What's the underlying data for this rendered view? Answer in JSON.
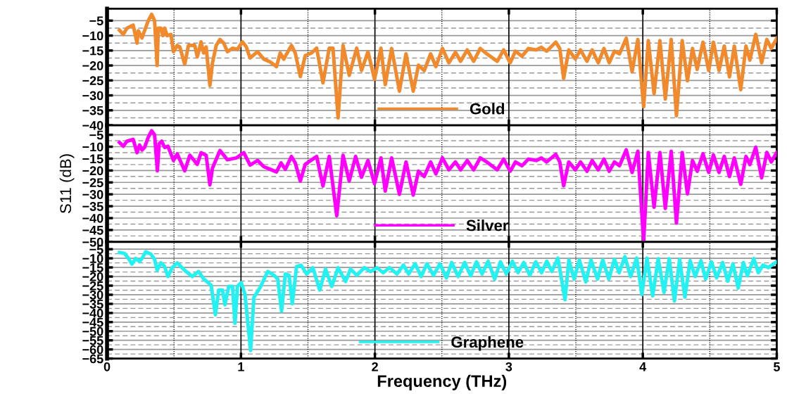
{
  "chart_data": [
    {
      "type": "line",
      "xlim": [
        0,
        5
      ],
      "xticks": [
        0,
        1,
        2,
        3,
        4,
        5
      ],
      "ylim": [
        -40,
        -1
      ],
      "yticks": [
        -40,
        -35,
        -30,
        -25,
        -20,
        -15,
        -10,
        -5
      ],
      "grid": true,
      "legend": "bottom",
      "tick_labels": "y",
      "line_style": "solid",
      "marker": "none",
      "series": [
        {
          "name": "Gold",
          "color": "#f08a2c",
          "x": [
            0.093,
            0.121,
            0.149,
            0.195,
            0.224,
            0.233,
            0.261,
            0.28,
            0.308,
            0.333,
            0.355,
            0.374,
            0.383,
            0.402,
            0.417,
            0.43,
            0.449,
            0.477,
            0.496,
            0.524,
            0.543,
            0.58,
            0.608,
            0.655,
            0.674,
            0.702,
            0.721,
            0.74,
            0.768,
            0.787,
            0.815,
            0.843,
            0.871,
            0.899,
            0.937,
            0.974,
            1.011,
            1.04,
            1.068,
            1.124,
            1.171,
            1.218,
            1.265,
            1.293,
            1.32,
            1.34,
            1.377,
            1.405,
            1.443,
            1.48,
            1.527,
            1.565,
            1.612,
            1.659,
            1.687,
            1.725,
            1.762,
            1.808,
            1.864,
            1.9,
            1.948,
            1.997,
            2.045,
            2.077,
            2.125,
            2.183,
            2.232,
            2.286,
            2.325,
            2.368,
            2.416,
            2.455,
            2.504,
            2.552,
            2.601,
            2.64,
            2.689,
            2.737,
            2.786,
            2.835,
            2.913,
            2.961,
            3.01,
            3.049,
            3.098,
            3.146,
            3.204,
            3.243,
            3.282,
            3.35,
            3.38,
            3.409,
            3.447,
            3.496,
            3.535,
            3.583,
            3.622,
            3.667,
            3.71,
            3.749,
            3.788,
            3.826,
            3.876,
            3.92,
            3.963,
            4.006,
            4.041,
            4.084,
            4.128,
            4.168,
            4.212,
            4.251,
            4.294,
            4.333,
            4.371,
            4.406,
            4.449,
            4.492,
            4.527,
            4.569,
            4.608,
            4.647,
            4.683,
            4.731,
            4.77,
            4.799,
            4.843,
            4.887,
            4.926,
            4.959,
            5.0
          ],
          "values": [
            -8.2,
            -9.6,
            -7.5,
            -6.5,
            -12.5,
            -8.4,
            -10.8,
            -8.4,
            -5.0,
            -2.9,
            -5.0,
            -20.0,
            -7.5,
            -7.5,
            -10.0,
            -7.5,
            -10.0,
            -9.6,
            -15.4,
            -13.3,
            -13.8,
            -19.6,
            -13.3,
            -13.3,
            -17.1,
            -12.1,
            -15.8,
            -13.8,
            -26.7,
            -19.2,
            -13.3,
            -11.3,
            -12.5,
            -15.4,
            -14.2,
            -14.6,
            -12.1,
            -13.8,
            -17.5,
            -15.4,
            -17.9,
            -18.8,
            -20.4,
            -15.8,
            -17.9,
            -16.2,
            -13.3,
            -15.8,
            -23.7,
            -16.7,
            -15.8,
            -14.2,
            -25.8,
            -14.2,
            -14.2,
            -37.5,
            -13.3,
            -23.3,
            -14.2,
            -21.7,
            -15.4,
            -24.6,
            -14.2,
            -26.4,
            -14.3,
            -28.6,
            -16.1,
            -28.6,
            -19.9,
            -21.7,
            -16.1,
            -20.4,
            -14.3,
            -19.1,
            -15.6,
            -18.6,
            -14.8,
            -18.6,
            -14.3,
            -16.1,
            -18.6,
            -14.8,
            -19.1,
            -15.2,
            -16.9,
            -14.3,
            -14.8,
            -13.9,
            -15.2,
            -12.2,
            -14.3,
            -24.3,
            -14.8,
            -17.8,
            -14.8,
            -18.6,
            -14.8,
            -19.1,
            -14.3,
            -19.1,
            -15.2,
            -16.1,
            -10.9,
            -22.1,
            -11.3,
            -33.8,
            -11.7,
            -29.4,
            -11.7,
            -31.2,
            -11.3,
            -36.8,
            -11.7,
            -25.1,
            -14.3,
            -21.3,
            -12.2,
            -21.7,
            -12.2,
            -21.7,
            -13.5,
            -23.8,
            -13.5,
            -28.1,
            -13.5,
            -18.2,
            -9.6,
            -19.1,
            -11.3,
            -14.3,
            -10.9
          ]
        }
      ]
    },
    {
      "type": "line",
      "xlim": [
        0,
        5
      ],
      "xticks": [
        0,
        1,
        2,
        3,
        4,
        5
      ],
      "ylim": [
        -50,
        -1
      ],
      "yticks": [
        -50,
        -45,
        -40,
        -35,
        -30,
        -25,
        -20,
        -15,
        -10,
        -5
      ],
      "grid": true,
      "legend": "bottom",
      "tick_labels": "y",
      "line_style": "solid",
      "marker": "none",
      "ylabel": "S11 (dB)",
      "series": [
        {
          "name": "Silver",
          "color": "#ff00ff",
          "x": [
            0.093,
            0.121,
            0.149,
            0.195,
            0.224,
            0.243,
            0.261,
            0.28,
            0.308,
            0.333,
            0.355,
            0.376,
            0.389,
            0.408,
            0.43,
            0.455,
            0.496,
            0.524,
            0.58,
            0.618,
            0.674,
            0.702,
            0.74,
            0.768,
            0.787,
            0.843,
            0.899,
            0.965,
            1.021,
            1.068,
            1.124,
            1.171,
            1.218,
            1.265,
            1.299,
            1.331,
            1.377,
            1.405,
            1.443,
            1.48,
            1.565,
            1.612,
            1.659,
            1.715,
            1.762,
            1.808,
            1.856,
            1.9,
            1.948,
            1.997,
            2.045,
            2.077,
            2.125,
            2.183,
            2.232,
            2.286,
            2.325,
            2.368,
            2.416,
            2.455,
            2.504,
            2.552,
            2.601,
            2.64,
            2.689,
            2.737,
            2.786,
            2.835,
            2.913,
            2.961,
            3.01,
            3.049,
            3.098,
            3.146,
            3.204,
            3.243,
            3.282,
            3.35,
            3.38,
            3.409,
            3.447,
            3.496,
            3.535,
            3.583,
            3.622,
            3.667,
            3.71,
            3.749,
            3.788,
            3.826,
            3.876,
            3.92,
            3.963,
            4.006,
            4.041,
            4.084,
            4.128,
            4.168,
            4.212,
            4.251,
            4.294,
            4.333,
            4.371,
            4.406,
            4.449,
            4.492,
            4.527,
            4.569,
            4.608,
            4.647,
            4.683,
            4.731,
            4.77,
            4.799,
            4.843,
            4.887,
            4.926,
            4.959,
            5.0
          ],
          "values": [
            -8.2,
            -9.8,
            -7.7,
            -6.9,
            -12.5,
            -9.3,
            -11.4,
            -10.3,
            -6.0,
            -3.3,
            -5.0,
            -20.1,
            -8.7,
            -7.7,
            -10.3,
            -9.8,
            -15.8,
            -13.0,
            -20.1,
            -13.6,
            -17.4,
            -12.5,
            -13.6,
            -26.0,
            -19.0,
            -11.6,
            -15.5,
            -14.7,
            -12.5,
            -17.7,
            -15.8,
            -18.4,
            -19.5,
            -20.6,
            -16.8,
            -19.5,
            -14.1,
            -16.8,
            -24.4,
            -17.4,
            -14.1,
            -26.5,
            -14.1,
            -39.0,
            -13.6,
            -24.4,
            -14.1,
            -22.8,
            -15.8,
            -25.5,
            -14.7,
            -28.6,
            -14.7,
            -30.0,
            -16.4,
            -30.3,
            -20.3,
            -22.5,
            -16.4,
            -21.4,
            -14.7,
            -19.7,
            -16.4,
            -19.7,
            -15.8,
            -19.7,
            -14.7,
            -16.4,
            -19.7,
            -15.2,
            -20.3,
            -16.4,
            -18.0,
            -15.2,
            -15.8,
            -14.7,
            -16.4,
            -13.2,
            -16.4,
            -26.4,
            -16.4,
            -19.7,
            -16.4,
            -20.3,
            -15.8,
            -19.7,
            -15.2,
            -20.3,
            -16.4,
            -18.0,
            -11.3,
            -20.8,
            -11.9,
            -49.9,
            -12.4,
            -35.4,
            -12.4,
            -35.9,
            -11.9,
            -42.1,
            -12.4,
            -29.8,
            -15.8,
            -20.3,
            -13.0,
            -20.8,
            -13.5,
            -20.8,
            -14.1,
            -22.5,
            -14.7,
            -25.8,
            -14.1,
            -17.5,
            -10.2,
            -23.1,
            -12.4,
            -16.4,
            -12.4
          ]
        }
      ]
    },
    {
      "type": "line",
      "xlim": [
        0,
        5
      ],
      "xticks": [
        0,
        1,
        2,
        3,
        4,
        5
      ],
      "ylim": [
        -65,
        -1
      ],
      "yticks": [
        -65,
        -60,
        -55,
        -50,
        -45,
        -40,
        -35,
        -30,
        -25,
        -20,
        -15,
        -10,
        -5
      ],
      "grid": true,
      "legend": "bottom",
      "line_style": "solid",
      "marker": "none",
      "xlabel": "Frequency (THz)",
      "series": [
        {
          "name": "Graphene",
          "color": "#22f2f2",
          "x": [
            0.093,
            0.13,
            0.158,
            0.186,
            0.214,
            0.243,
            0.261,
            0.289,
            0.327,
            0.355,
            0.374,
            0.402,
            0.43,
            0.454,
            0.486,
            0.524,
            0.58,
            0.637,
            0.684,
            0.721,
            0.777,
            0.809,
            0.834,
            0.862,
            0.88,
            0.909,
            0.937,
            0.955,
            0.974,
            1.002,
            1.03,
            1.072,
            1.096,
            1.143,
            1.2,
            1.246,
            1.274,
            1.303,
            1.331,
            1.359,
            1.383,
            1.415,
            1.449,
            1.49,
            1.537,
            1.588,
            1.631,
            1.678,
            1.725,
            1.781,
            1.818,
            1.865,
            1.922,
            1.968,
            2.015,
            2.062,
            2.109,
            2.164,
            2.213,
            2.252,
            2.3,
            2.345,
            2.388,
            2.437,
            2.485,
            2.534,
            2.573,
            2.621,
            2.67,
            2.715,
            2.758,
            2.8,
            2.845,
            2.894,
            2.937,
            2.981,
            3.026,
            3.069,
            3.111,
            3.156,
            3.201,
            3.244,
            3.283,
            3.321,
            3.366,
            3.419,
            3.448,
            3.487,
            3.526,
            3.574,
            3.613,
            3.662,
            3.701,
            3.746,
            3.788,
            3.823,
            3.866,
            3.909,
            3.954,
            3.993,
            4.031,
            4.074,
            4.115,
            4.158,
            4.197,
            4.236,
            4.275,
            4.314,
            4.353,
            4.391,
            4.434,
            4.469,
            4.512,
            4.551,
            4.596,
            4.634,
            4.673,
            4.712,
            4.751,
            4.78,
            4.829,
            4.862,
            4.897,
            4.936,
            5.0
          ],
          "values": [
            -6.8,
            -7.3,
            -9.8,
            -13.2,
            -10.1,
            -11.8,
            -10.1,
            -6.4,
            -7.7,
            -10.5,
            -16.6,
            -12.5,
            -14.5,
            -20.0,
            -15.2,
            -12.5,
            -16.6,
            -20.0,
            -17.2,
            -21.3,
            -24.7,
            -41.0,
            -27.4,
            -27.4,
            -35.5,
            -25.4,
            -25.4,
            -45.7,
            -25.4,
            -23.3,
            -29.8,
            -60.6,
            -31.5,
            -26.0,
            -17.2,
            -19.3,
            -21.3,
            -39.0,
            -18.6,
            -19.3,
            -34.9,
            -14.5,
            -13.8,
            -18.6,
            -15.2,
            -27.4,
            -15.9,
            -25.4,
            -15.2,
            -22.7,
            -15.9,
            -19.3,
            -15.1,
            -17.2,
            -15.2,
            -17.9,
            -15.1,
            -18.6,
            -13.7,
            -18.6,
            -13.0,
            -20.0,
            -13.0,
            -19.3,
            -13.0,
            -20.7,
            -12.3,
            -20.0,
            -12.3,
            -19.6,
            -11.9,
            -18.6,
            -11.6,
            -21.4,
            -11.9,
            -18.6,
            -11.6,
            -17.9,
            -12.3,
            -19.3,
            -11.9,
            -17.9,
            -11.6,
            -17.2,
            -9.9,
            -32.7,
            -10.9,
            -21.4,
            -10.9,
            -22.9,
            -10.9,
            -21.4,
            -10.9,
            -21.4,
            -10.5,
            -17.9,
            -9.1,
            -20.0,
            -9.9,
            -29.9,
            -9.9,
            -30.6,
            -10.2,
            -28.7,
            -10.2,
            -33.4,
            -10.5,
            -31.3,
            -11.3,
            -20.0,
            -11.3,
            -21.4,
            -11.9,
            -20.7,
            -12.3,
            -22.5,
            -13.0,
            -26.3,
            -12.3,
            -19.6,
            -10.2,
            -17.9,
            -13.7,
            -15.1,
            -11.9
          ]
        }
      ]
    }
  ]
}
